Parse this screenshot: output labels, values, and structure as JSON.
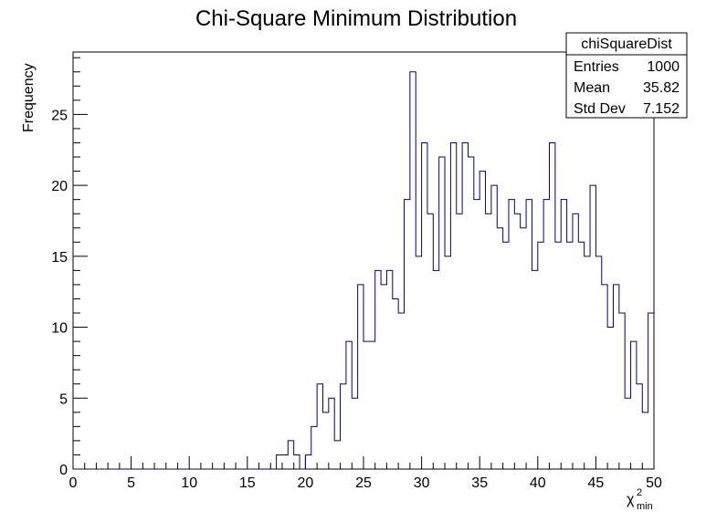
{
  "chart_data": {
    "type": "bar",
    "style": "step-histogram",
    "title": "Chi-Square Minimum Distribution",
    "xlabel": "χ²min",
    "xlabel_main": "χ",
    "xlabel_sup": "2",
    "xlabel_sub": "min",
    "ylabel": "Frequency",
    "xlim": [
      0,
      50
    ],
    "ylim": [
      0,
      29.4
    ],
    "bin_width": 0.5,
    "x_ticks": [
      "0",
      "5",
      "10",
      "15",
      "20",
      "25",
      "30",
      "35",
      "40",
      "45",
      "50"
    ],
    "y_ticks": [
      "0",
      "5",
      "10",
      "15",
      "20",
      "25"
    ],
    "grid": false,
    "line_color": "#000080",
    "bins_start": 17.5,
    "values": [
      1,
      1,
      2,
      1,
      0,
      1,
      3,
      6,
      4,
      5,
      2,
      6,
      9,
      5,
      13,
      9,
      9,
      14,
      13,
      14,
      12,
      11,
      19,
      28,
      15,
      23,
      18,
      14,
      22,
      15,
      23,
      18,
      23,
      22,
      19,
      21,
      18,
      20,
      17,
      16,
      19,
      18,
      17,
      19,
      14,
      16,
      19,
      23,
      16,
      19,
      16,
      18,
      16,
      15,
      20,
      15,
      13,
      10,
      13,
      11,
      5,
      9,
      6,
      4,
      11
    ]
  },
  "stats_box": {
    "name": "chiSquareDist",
    "rows": [
      {
        "label": "Entries",
        "value": "1000"
      },
      {
        "label": "Mean",
        "value": "35.82"
      },
      {
        "label": "Std Dev",
        "value": "7.152"
      }
    ]
  }
}
